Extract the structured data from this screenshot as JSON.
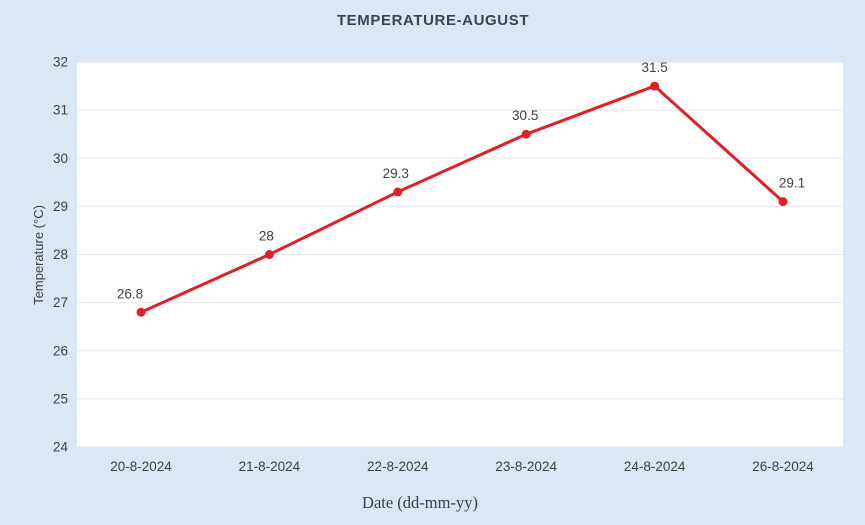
{
  "chart_data": {
    "type": "line",
    "title": "TEMPERATURE-AUGUST",
    "xlabel": "Date (dd-mm-yy)",
    "ylabel": "Temperature (°C)",
    "categories": [
      "20-8-2024",
      "21-8-2024",
      "22-8-2024",
      "23-8-2024",
      "24-8-2024",
      "26-8-2024"
    ],
    "values": [
      26.8,
      28,
      29.3,
      30.5,
      31.5,
      29.1
    ],
    "point_labels": [
      "26.8",
      "28",
      "29.3",
      "30.5",
      "31.5",
      "29.1"
    ],
    "ylim": [
      24,
      32
    ],
    "ytick_step": 1,
    "grid": "horizontal",
    "legend": "none",
    "marker": "circle",
    "colors": {
      "series": "#df2026",
      "background": "#dbe7f4",
      "plot_background": "#ffffff",
      "gridline": "#e7e7e7",
      "tick_text": "#404040",
      "title_text": "#3b4350",
      "axis_title_text": "#333f4f"
    }
  }
}
